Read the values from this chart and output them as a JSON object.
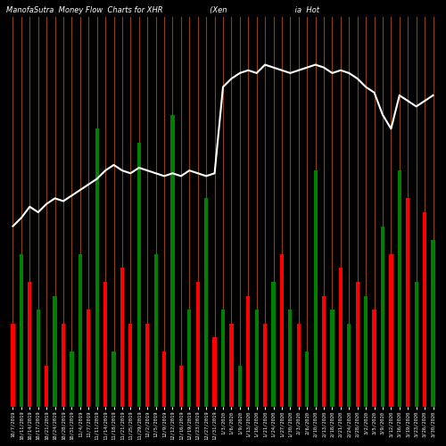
{
  "title": "ManofaSutra  Money Flow  Charts for XHR                    (Xen                             ia  Hot",
  "background_color": "#000000",
  "line_color": "#ffffff",
  "orange_line_color": "#8B4500",
  "categories": [
    "10/7/2019",
    "10/11/2019",
    "10/14/2019",
    "10/17/2019",
    "10/21/2019",
    "10/24/2019",
    "10/28/2019",
    "10/31/2019",
    "11/4/2019",
    "11/7/2019",
    "11/11/2019",
    "11/14/2019",
    "11/18/2019",
    "11/21/2019",
    "11/25/2019",
    "11/29/2019",
    "12/2/2019",
    "12/5/2019",
    "12/9/2019",
    "12/12/2019",
    "12/16/2019",
    "12/19/2019",
    "12/23/2019",
    "12/27/2019",
    "12/31/2019",
    "1/3/2020",
    "1/6/2020",
    "1/9/2020",
    "1/13/2020",
    "1/16/2020",
    "1/21/2020",
    "1/24/2020",
    "1/27/2020",
    "1/30/2020",
    "2/3/2020",
    "2/6/2020",
    "2/10/2020",
    "2/13/2020",
    "2/18/2020",
    "2/21/2020",
    "2/24/2020",
    "2/28/2020",
    "3/2/2020",
    "3/5/2020",
    "3/9/2020",
    "3/12/2020",
    "3/16/2020",
    "3/19/2020",
    "3/23/2020",
    "3/26/2020",
    "3/30/2020"
  ],
  "bar_values": [
    3.0,
    5.5,
    4.5,
    3.5,
    1.5,
    4.0,
    3.0,
    2.0,
    5.5,
    3.5,
    10.0,
    4.5,
    2.0,
    5.0,
    3.0,
    9.5,
    3.0,
    5.5,
    2.0,
    10.5,
    1.5,
    3.5,
    4.5,
    7.5,
    2.5,
    3.5,
    3.0,
    1.5,
    4.0,
    3.5,
    3.0,
    4.5,
    5.5,
    3.5,
    3.0,
    2.0,
    8.5,
    4.0,
    3.5,
    5.0,
    3.0,
    4.5,
    4.0,
    3.5,
    6.5,
    5.5,
    8.5,
    7.5,
    4.5,
    7.0,
    6.0
  ],
  "bar_colors": [
    "red",
    "green",
    "red",
    "green",
    "red",
    "green",
    "red",
    "green",
    "green",
    "red",
    "green",
    "red",
    "green",
    "red",
    "red",
    "green",
    "red",
    "green",
    "red",
    "green",
    "red",
    "green",
    "red",
    "green",
    "red",
    "green",
    "red",
    "green",
    "red",
    "green",
    "red",
    "green",
    "red",
    "green",
    "red",
    "green",
    "green",
    "red",
    "green",
    "red",
    "green",
    "red",
    "green",
    "red",
    "green",
    "red",
    "green",
    "red",
    "green",
    "red",
    "green"
  ],
  "price_line": [
    6.5,
    6.8,
    7.2,
    7.0,
    7.3,
    7.5,
    7.4,
    7.6,
    7.8,
    8.0,
    8.2,
    8.5,
    8.7,
    8.5,
    8.4,
    8.6,
    8.5,
    8.4,
    8.3,
    8.4,
    8.3,
    8.5,
    8.4,
    8.3,
    8.4,
    11.5,
    11.8,
    12.0,
    12.1,
    12.0,
    12.3,
    12.2,
    12.1,
    12.0,
    12.1,
    12.2,
    12.3,
    12.2,
    12.0,
    12.1,
    12.0,
    11.8,
    11.5,
    11.3,
    10.5,
    10.0,
    11.2,
    11.0,
    10.8,
    11.0,
    11.2
  ],
  "title_fontsize": 6,
  "tick_fontsize": 4,
  "ylim": [
    0,
    14
  ],
  "figsize": [
    5.0,
    5.0
  ],
  "dpi": 100
}
